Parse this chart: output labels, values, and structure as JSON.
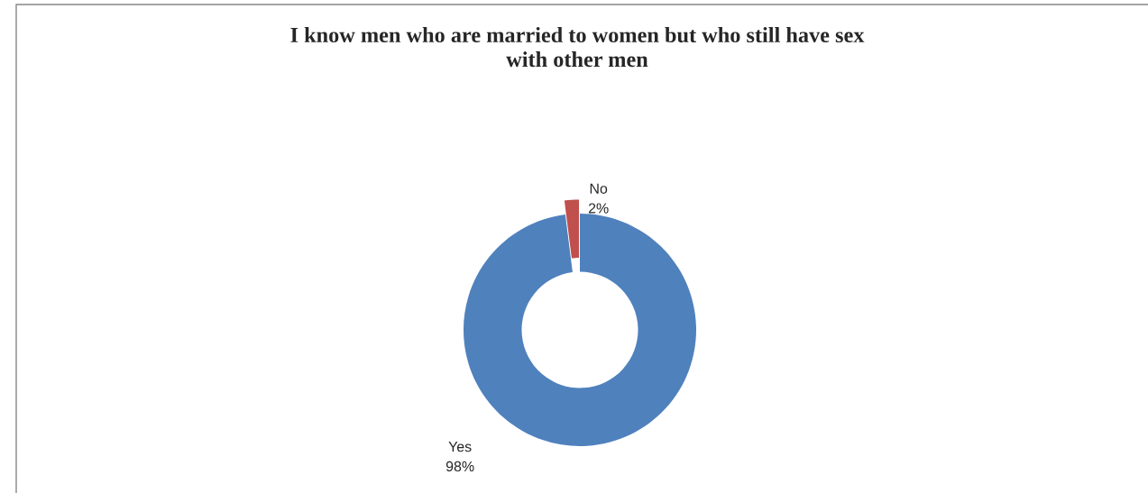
{
  "chart_data": {
    "type": "donut",
    "title": "I know men who are married to women but who still have sex with other men",
    "categories": [
      "Yes",
      "No"
    ],
    "values": [
      98,
      2
    ],
    "colors": [
      "#4f81bd",
      "#c0504d"
    ],
    "value_labels": [
      "98%",
      "2%"
    ],
    "legend": false
  }
}
